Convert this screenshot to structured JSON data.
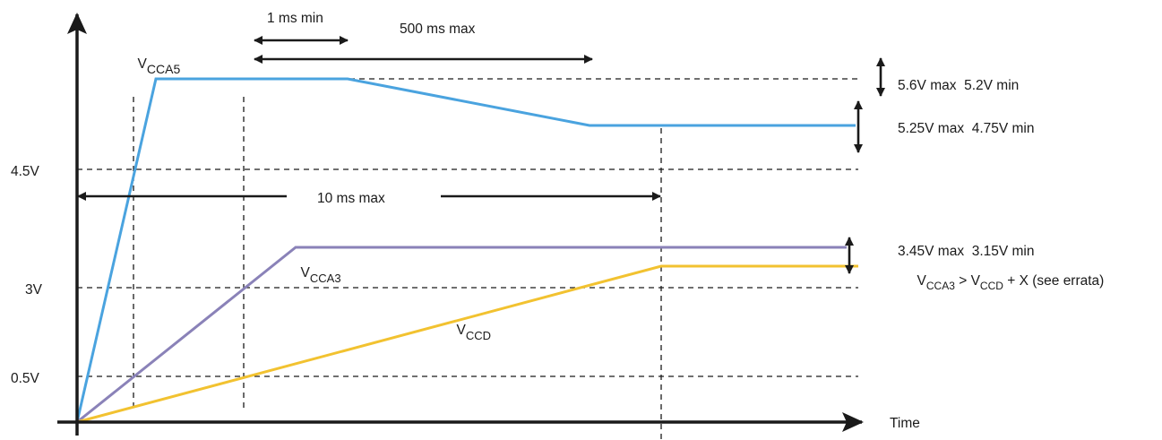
{
  "axes": {
    "x_label": "Time",
    "y_ticks": [
      "4.5V",
      "3V",
      "0.5V"
    ]
  },
  "timing": {
    "min_1ms": "1 ms min",
    "max_500ms": "500 ms max",
    "max_10ms": "10 ms max"
  },
  "curves": {
    "vcca5": {
      "main": "V",
      "sub": "CCA5",
      "color": "#4aa3df"
    },
    "vcca3": {
      "main": "V",
      "sub": "CCA3",
      "color": "#8a82b8"
    },
    "vccd": {
      "main": "V",
      "sub": "CCD",
      "color": "#f2c230"
    }
  },
  "specs": {
    "vcca5_initial": "5.6V max  5.2V min",
    "vcca5_steady": "5.25V max  4.75V min",
    "vcca3": "3.45V max  3.15V min",
    "relation": {
      "v1": "V",
      "s1": "CCA3",
      "mid": " > V",
      "s2": "CCD",
      "tail": " + X (see errata)"
    }
  },
  "colors": {
    "axis": "#1a1a1a",
    "dash": "#1a1a1a"
  }
}
